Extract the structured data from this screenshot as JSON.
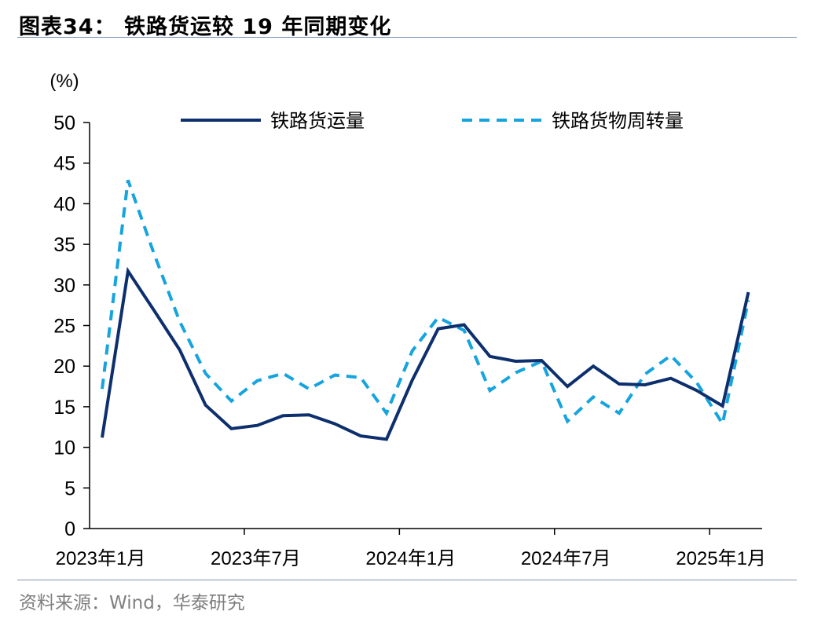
{
  "header": {
    "title": "图表34：  铁路货运较 19 年同期变化"
  },
  "footer": {
    "source": "资料来源：Wind，华泰研究"
  },
  "chart_data": {
    "type": "line",
    "unit_label": "(%)",
    "ylim": [
      0,
      50
    ],
    "yticks": [
      0,
      5,
      10,
      15,
      20,
      25,
      30,
      35,
      40,
      45,
      50
    ],
    "x_tick_labels": [
      "2023年1月",
      "2023年7月",
      "2024年1月",
      "2024年7月",
      "2025年1月"
    ],
    "categories": [
      "2023-01",
      "2023-02",
      "2023-03",
      "2023-04",
      "2023-05",
      "2023-06",
      "2023-07",
      "2023-08",
      "2023-09",
      "2023-10",
      "2023-11",
      "2023-12",
      "2024-01",
      "2024-02",
      "2024-03",
      "2024-04",
      "2024-05",
      "2024-06",
      "2024-07",
      "2024-08",
      "2024-09",
      "2024-10",
      "2024-11",
      "2024-12",
      "2025-01",
      "2025-02"
    ],
    "legend_position": "top",
    "series": [
      {
        "name": "铁路货运量",
        "color": "#0d2f6d",
        "style": "solid",
        "values": [
          11.2,
          31.7,
          26.9,
          22.0,
          15.2,
          12.3,
          12.7,
          13.9,
          14.0,
          12.9,
          11.4,
          11.0,
          18.3,
          24.6,
          25.1,
          21.2,
          20.6,
          20.7,
          17.5,
          20.0,
          17.8,
          17.7,
          18.5,
          17.0,
          15.1,
          29.1
        ]
      },
      {
        "name": "铁路货物周转量",
        "color": "#15a4de",
        "style": "dashed",
        "values": [
          17.2,
          42.9,
          33.9,
          25.5,
          19.1,
          15.7,
          18.2,
          19.1,
          17.2,
          18.9,
          18.6,
          14.2,
          21.9,
          26.0,
          24.4,
          17.0,
          19.2,
          20.6,
          13.2,
          16.2,
          14.2,
          19.0,
          21.3,
          18.0,
          12.9,
          28.1
        ]
      }
    ]
  }
}
